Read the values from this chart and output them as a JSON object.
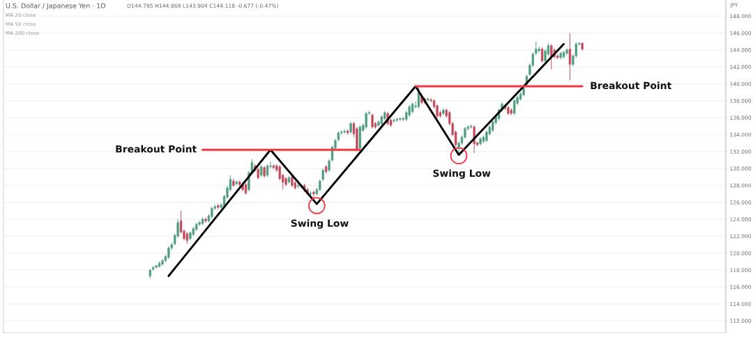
{
  "chart_data": {
    "type": "candlestick",
    "title": "U.S. Dollar / Japanese Yen · 1D",
    "ylabel": "JPY",
    "annotations": [
      "O144.795 H144.869 L143.904 C144.118 -0.677 (-0.47%)",
      "MA 20 close",
      "MA 50 close",
      "MA 200 close"
    ],
    "categories": [
      null,
      null,
      null,
      null,
      null,
      null,
      null,
      null,
      null,
      null,
      null,
      null,
      null,
      null,
      null,
      null,
      null,
      null,
      null,
      null,
      null,
      null,
      null,
      null,
      null,
      null,
      null,
      null,
      null,
      null,
      null,
      null,
      null,
      null,
      null,
      null,
      null,
      null,
      null,
      null,
      null,
      null,
      null,
      null,
      null,
      null,
      null,
      null,
      null,
      null,
      null,
      null,
      null,
      null,
      null,
      null,
      null,
      null,
      null,
      null,
      null,
      null,
      null,
      null,
      null,
      null,
      null,
      null,
      null,
      null,
      null,
      null,
      null,
      null,
      null,
      null,
      null,
      null,
      null,
      null,
      null,
      null,
      null,
      null,
      null,
      null,
      null,
      null,
      null,
      null,
      null,
      null,
      null,
      null,
      null,
      null,
      null,
      null,
      null,
      null,
      null,
      null,
      null,
      null,
      null,
      null,
      null,
      null,
      null,
      null,
      null,
      null,
      null,
      null,
      null,
      null,
      null,
      null,
      null,
      null,
      null,
      null,
      null,
      null,
      null,
      null,
      null,
      null,
      null,
      null,
      null,
      null,
      null,
      null,
      null,
      null,
      null,
      null,
      null,
      null,
      null,
      null,
      null,
      null,
      null,
      null,
      null,
      null,
      null,
      null,
      null,
      null,
      null,
      null,
      null,
      null,
      null,
      null,
      null,
      null,
      null,
      null,
      null,
      null,
      null,
      null,
      null,
      null,
      null,
      null,
      null,
      null,
      null,
      null,
      null,
      null,
      null,
      null,
      null,
      null,
      null,
      null,
      null,
      null,
      null,
      null,
      null,
      null,
      null,
      null,
      null,
      null,
      null,
      null,
      null,
      null,
      null,
      null,
      null,
      null,
      null,
      null,
      null,
      null,
      null,
      null,
      null,
      null,
      null,
      null,
      null,
      null,
      null,
      null,
      null,
      null,
      null,
      null,
      null,
      null,
      null,
      null,
      null,
      null,
      null,
      null,
      null,
      null,
      null,
      null,
      null,
      null,
      null,
      null
    ],
    "ohlc": [
      null,
      null,
      null,
      null,
      null,
      null,
      null,
      null,
      null,
      null,
      null,
      null,
      null,
      null,
      null,
      null,
      null,
      null,
      null,
      null,
      null,
      null,
      null,
      null,
      null,
      null,
      null,
      null,
      null,
      null,
      null,
      null,
      null,
      null,
      null,
      null,
      null,
      null,
      null,
      null,
      null,
      null,
      null,
      null,
      null,
      null,
      null,
      [
        117.3,
        118.1,
        117.0,
        118.0
      ],
      [
        118.1,
        118.5,
        117.9,
        118.3
      ],
      [
        118.3,
        118.6,
        118.2,
        118.5
      ],
      [
        118.4,
        119.0,
        118.3,
        118.8
      ],
      [
        118.7,
        119.3,
        118.5,
        119.1
      ],
      [
        119.1,
        119.8,
        118.9,
        119.6
      ],
      [
        119.5,
        120.8,
        119.3,
        120.6
      ],
      [
        120.6,
        121.2,
        120.4,
        121.0
      ],
      [
        121.1,
        122.3,
        120.9,
        122.1
      ],
      [
        122.0,
        124.0,
        121.8,
        123.6
      ],
      [
        123.8,
        125.0,
        122.3,
        122.5
      ],
      [
        122.6,
        122.8,
        121.5,
        121.7
      ],
      [
        122.3,
        122.5,
        121.1,
        121.5
      ],
      [
        121.7,
        122.5,
        121.5,
        122.4
      ],
      [
        122.2,
        123.1,
        122.0,
        122.9
      ],
      [
        122.8,
        123.6,
        122.6,
        123.4
      ],
      [
        123.4,
        123.8,
        123.2,
        123.6
      ],
      [
        123.5,
        124.2,
        123.3,
        124.0
      ],
      [
        124.0,
        124.2,
        123.6,
        123.8
      ],
      [
        123.8,
        124.6,
        123.6,
        124.4
      ],
      [
        124.3,
        125.5,
        124.1,
        125.3
      ],
      [
        125.3,
        125.7,
        125.1,
        125.5
      ],
      [
        125.6,
        125.8,
        125.2,
        125.4
      ],
      [
        125.4,
        125.9,
        125.2,
        125.7
      ],
      [
        125.5,
        126.9,
        125.3,
        126.7
      ],
      [
        126.6,
        127.9,
        126.4,
        127.7
      ],
      [
        127.5,
        129.2,
        127.3,
        128.7
      ],
      [
        128.5,
        128.8,
        127.8,
        128.0
      ],
      [
        128.2,
        128.6,
        128.0,
        128.4
      ],
      [
        128.4,
        128.6,
        127.9,
        128.1
      ],
      [
        128.2,
        128.4,
        127.3,
        127.5
      ],
      [
        128.1,
        128.3,
        126.9,
        127.1
      ],
      [
        127.5,
        129.7,
        127.3,
        129.5
      ],
      [
        129.5,
        131.1,
        129.3,
        130.7
      ],
      [
        130.3,
        130.5,
        129.6,
        129.8
      ],
      [
        129.9,
        130.1,
        128.7,
        128.9
      ],
      [
        129.2,
        130.4,
        129.0,
        130.2
      ],
      [
        130.1,
        130.3,
        128.9,
        129.1
      ],
      [
        129.2,
        130.5,
        129.0,
        130.3
      ],
      [
        130.2,
        130.8,
        130.0,
        130.3
      ],
      [
        130.3,
        130.5,
        129.9,
        130.1
      ],
      [
        130.3,
        130.5,
        129.6,
        129.8
      ],
      [
        130.2,
        130.4,
        128.6,
        128.8
      ],
      [
        129.2,
        129.4,
        127.5,
        128.4
      ],
      [
        128.8,
        129.0,
        127.9,
        128.1
      ],
      [
        128.4,
        129.1,
        128.2,
        128.9
      ],
      [
        129.0,
        129.2,
        127.8,
        128.0
      ],
      [
        128.3,
        128.5,
        127.5,
        127.7
      ],
      [
        127.9,
        128.2,
        127.7,
        128.0
      ],
      [
        127.8,
        128.2,
        127.6,
        128.0
      ],
      [
        128.0,
        128.2,
        127.2,
        127.4
      ],
      [
        127.5,
        127.7,
        126.8,
        127.0
      ],
      [
        127.0,
        127.3,
        126.6,
        127.1
      ],
      [
        127.2,
        127.4,
        126.5,
        127.0
      ],
      [
        127.0,
        127.7,
        126.8,
        127.5
      ],
      [
        127.5,
        128.7,
        127.3,
        128.5
      ],
      [
        128.7,
        130.0,
        128.5,
        129.8
      ],
      [
        130.2,
        130.4,
        129.4,
        129.6
      ],
      [
        129.8,
        131.1,
        129.6,
        130.9
      ],
      [
        131.0,
        132.7,
        130.8,
        132.5
      ],
      [
        132.4,
        133.5,
        132.2,
        133.3
      ],
      [
        133.4,
        134.4,
        133.2,
        134.2
      ],
      [
        134.2,
        134.5,
        134.0,
        134.3
      ],
      [
        134.3,
        134.6,
        134.1,
        134.4
      ],
      [
        134.4,
        134.6,
        134.0,
        134.2
      ],
      [
        134.3,
        135.5,
        134.1,
        135.3
      ],
      [
        135.3,
        135.5,
        133.7,
        134.1
      ],
      [
        134.7,
        134.9,
        132.0,
        132.2
      ],
      [
        132.4,
        135.1,
        132.2,
        134.9
      ],
      [
        134.5,
        135.3,
        134.3,
        135.1
      ],
      [
        134.9,
        136.7,
        134.7,
        136.5
      ],
      [
        136.5,
        136.8,
        136.3,
        136.6
      ],
      [
        136.3,
        136.5,
        134.7,
        134.9
      ],
      [
        135.3,
        135.5,
        134.7,
        134.9
      ],
      [
        135.1,
        135.7,
        134.9,
        135.5
      ],
      [
        135.3,
        136.3,
        135.1,
        136.1
      ],
      [
        135.9,
        136.8,
        135.7,
        136.6
      ],
      [
        136.5,
        136.7,
        135.1,
        135.3
      ],
      [
        135.7,
        135.9,
        134.9,
        135.1
      ],
      [
        135.6,
        135.9,
        135.4,
        135.7
      ],
      [
        135.7,
        136.0,
        135.5,
        135.8
      ],
      [
        135.8,
        136.0,
        135.6,
        135.9
      ],
      [
        135.8,
        136.1,
        135.6,
        135.9
      ],
      [
        135.8,
        136.8,
        135.6,
        136.6
      ],
      [
        136.3,
        137.5,
        136.1,
        137.3
      ],
      [
        136.7,
        137.8,
        136.5,
        137.6
      ],
      [
        137.3,
        137.9,
        137.1,
        137.4
      ],
      [
        137.3,
        139.6,
        137.1,
        139.0
      ],
      [
        138.5,
        138.8,
        137.6,
        137.8
      ],
      [
        138.2,
        138.4,
        137.6,
        137.8
      ],
      [
        138.1,
        138.4,
        137.9,
        138.2
      ],
      [
        138.1,
        138.3,
        137.8,
        138.0
      ],
      [
        138.0,
        138.2,
        137.1,
        137.3
      ],
      [
        137.4,
        137.6,
        136.0,
        136.2
      ],
      [
        136.6,
        136.8,
        136.0,
        136.2
      ],
      [
        136.5,
        137.1,
        136.3,
        136.9
      ],
      [
        136.9,
        137.1,
        136.0,
        136.2
      ],
      [
        136.6,
        136.8,
        135.1,
        135.3
      ],
      [
        135.3,
        135.5,
        133.8,
        134.0
      ],
      [
        134.3,
        134.5,
        132.6,
        132.8
      ],
      [
        132.4,
        133.2,
        131.6,
        133.0
      ],
      [
        133.0,
        133.9,
        132.8,
        133.7
      ],
      [
        133.7,
        134.9,
        133.5,
        134.7
      ],
      [
        134.7,
        135.1,
        134.5,
        134.9
      ],
      [
        134.9,
        135.2,
        134.7,
        135.0
      ],
      [
        134.9,
        135.1,
        131.8,
        132.9
      ],
      [
        133.0,
        133.2,
        132.6,
        132.8
      ],
      [
        132.9,
        133.7,
        132.7,
        133.5
      ],
      [
        133.2,
        133.9,
        133.0,
        133.7
      ],
      [
        133.3,
        134.5,
        133.1,
        134.3
      ],
      [
        134.1,
        135.1,
        133.9,
        134.9
      ],
      [
        134.5,
        135.7,
        134.3,
        135.5
      ],
      [
        135.4,
        136.3,
        135.2,
        136.1
      ],
      [
        135.9,
        137.1,
        135.7,
        136.9
      ],
      [
        136.9,
        137.8,
        136.7,
        137.6
      ],
      [
        137.4,
        137.6,
        136.9,
        137.1
      ],
      [
        137.2,
        137.4,
        136.3,
        136.5
      ],
      [
        136.9,
        137.1,
        136.3,
        136.5
      ],
      [
        136.5,
        138.2,
        136.3,
        138.0
      ],
      [
        137.7,
        138.6,
        137.5,
        138.4
      ],
      [
        138.2,
        139.0,
        138.0,
        138.8
      ],
      [
        138.7,
        139.7,
        138.5,
        139.5
      ],
      [
        139.9,
        141.1,
        139.7,
        140.9
      ],
      [
        141.1,
        142.4,
        140.9,
        142.2
      ],
      [
        142.2,
        143.7,
        142.0,
        143.5
      ],
      [
        143.6,
        145.0,
        143.4,
        144.1
      ],
      [
        143.9,
        144.4,
        143.7,
        144.1
      ],
      [
        144.1,
        144.3,
        142.5,
        142.7
      ],
      [
        142.7,
        144.1,
        142.5,
        143.9
      ],
      [
        143.5,
        144.8,
        143.3,
        144.5
      ],
      [
        144.5,
        144.7,
        141.7,
        143.1
      ],
      [
        144.0,
        144.2,
        143.0,
        143.2
      ],
      [
        143.3,
        143.5,
        142.9,
        143.1
      ],
      [
        143.1,
        143.8,
        142.9,
        143.6
      ],
      [
        143.2,
        143.9,
        143.0,
        143.7
      ],
      [
        143.6,
        144.2,
        143.4,
        144.0
      ],
      [
        144.1,
        146.0,
        140.4,
        142.3
      ],
      [
        142.3,
        143.5,
        142.1,
        143.3
      ],
      [
        143.3,
        144.9,
        143.1,
        144.7
      ],
      [
        144.7,
        144.9,
        144.5,
        144.8
      ],
      [
        144.795,
        144.869,
        143.904,
        144.118
      ],
      null,
      null,
      null,
      null,
      null,
      null,
      null,
      null,
      null,
      null,
      null,
      null,
      null,
      null,
      null,
      null,
      null,
      null,
      null,
      null,
      null,
      null,
      null,
      null,
      null,
      null,
      null,
      null,
      null,
      null,
      null,
      null,
      null,
      null,
      null,
      null,
      null,
      null,
      null,
      null,
      null,
      null,
      null,
      null,
      null,
      null
    ],
    "colors": [
      null,
      null,
      null,
      null,
      null,
      null,
      null,
      null,
      null,
      null,
      null,
      null,
      null,
      null,
      null,
      null,
      null,
      null,
      null,
      null,
      null,
      null,
      null,
      null,
      null,
      null,
      null,
      null,
      null,
      null,
      null,
      null,
      null,
      null,
      null,
      null,
      null,
      null,
      null,
      null,
      null,
      null,
      null,
      null,
      null,
      null,
      null,
      "#4f9d7e",
      "#4f9d7e",
      "#4f9d7e",
      "#4f9d7e",
      "#4f9d7e",
      "#4f9d7e",
      "#4f9d7e",
      "#4f9d7e",
      "#4f9d7e",
      "#4f9d7e",
      "#c04b5c",
      "#c04b5c",
      "#c04b5c",
      "#4f9d7e",
      "#4f9d7e",
      "#4f9d7e",
      "#4f9d7e",
      "#4f9d7e",
      "#c04b5c",
      "#4f9d7e",
      "#4f9d7e",
      "#4f9d7e",
      "#c04b5c",
      "#4f9d7e",
      "#4f9d7e",
      "#4f9d7e",
      "#4f9d7e",
      "#c04b5c",
      "#4f9d7e",
      "#c04b5c",
      "#c04b5c",
      "#c04b5c",
      "#4f9d7e",
      "#4f9d7e",
      "#c04b5c",
      "#c04b5c",
      "#4f9d7e",
      "#c04b5c",
      "#4f9d7e",
      "#4f9d7e",
      "#c04b5c",
      "#c04b5c",
      "#c04b5c",
      "#c04b5c",
      "#c04b5c",
      "#4f9d7e",
      "#c04b5c",
      "#c04b5c",
      "#4f9d7e",
      "#4f9d7e",
      "#c04b5c",
      "#c04b5c",
      "#4f9d7e",
      "#c04b5c",
      "#4f9d7e",
      "#4f9d7e",
      "#4f9d7e",
      "#c04b5c",
      "#4f9d7e",
      "#4f9d7e",
      "#4f9d7e",
      "#4f9d7e",
      "#4f9d7e",
      "#4f9d7e",
      "#c04b5c",
      "#4f9d7e",
      "#c04b5c",
      "#c04b5c",
      "#4f9d7e",
      "#4f9d7e",
      "#4f9d7e",
      "#4f9d7e",
      "#c04b5c",
      "#c04b5c",
      "#4f9d7e",
      "#4f9d7e",
      "#4f9d7e",
      "#c04b5c",
      "#c04b5c",
      "#4f9d7e",
      "#4f9d7e",
      "#4f9d7e",
      "#4f9d7e",
      "#4f9d7e",
      "#4f9d7e",
      "#4f9d7e",
      "#4f9d7e",
      "#4f9d7e",
      "#c04b5c",
      "#c04b5c",
      "#4f9d7e",
      "#c04b5c",
      "#c04b5c",
      "#c04b5c",
      "#c04b5c",
      "#4f9d7e",
      "#c04b5c",
      "#c04b5c",
      "#c04b5c",
      "#c04b5c",
      "#4f9d7e",
      "#4f9d7e",
      "#4f9d7e",
      "#4f9d7e",
      "#4f9d7e",
      "#c04b5c",
      "#c04b5c",
      "#4f9d7e",
      "#4f9d7e",
      "#4f9d7e",
      "#4f9d7e",
      "#4f9d7e",
      "#4f9d7e",
      "#4f9d7e",
      "#4f9d7e",
      "#c04b5c",
      "#c04b5c",
      "#c04b5c",
      "#4f9d7e",
      "#4f9d7e",
      "#4f9d7e",
      "#4f9d7e",
      "#4f9d7e",
      "#4f9d7e",
      "#4f9d7e",
      "#4f9d7e",
      "#4f9d7e",
      "#c04b5c",
      "#4f9d7e",
      "#4f9d7e",
      "#c04b5c",
      "#c04b5c",
      "#c04b5c",
      "#4f9d7e",
      "#4f9d7e",
      "#4f9d7e",
      "#c04b5c",
      "#4f9d7e",
      "#4f9d7e",
      "#4f9d7e",
      "#c04b5c",
      null,
      null,
      null,
      null,
      null,
      null,
      null,
      null,
      null,
      null,
      null,
      null,
      null,
      null,
      null,
      null,
      null,
      null,
      null,
      null,
      null,
      null,
      null,
      null,
      null,
      null,
      null,
      null,
      null,
      null,
      null,
      null,
      null,
      null,
      null,
      null,
      null,
      null,
      null,
      null,
      null,
      null,
      null,
      null,
      null,
      null
    ],
    "series": [
      {
        "type": "line",
        "color": "#000000",
        "values": [
          null,
          null,
          null,
          null,
          null,
          null,
          null,
          null,
          null,
          null,
          null,
          null,
          null,
          null,
          null,
          null,
          null,
          null,
          null,
          null,
          null,
          null,
          null,
          null,
          null,
          null,
          null,
          null,
          null,
          null,
          null,
          null,
          null,
          null,
          null,
          null,
          null,
          null,
          null,
          null,
          null,
          null,
          null,
          null,
          null,
          null,
          null,
          null,
          null,
          null,
          null,
          null,
          null,
          117.3,
          null,
          null,
          null,
          null,
          null,
          null,
          null,
          null,
          null,
          null,
          null,
          null,
          null,
          null,
          null,
          null,
          null,
          null,
          null,
          null,
          null,
          null,
          null,
          null,
          null,
          null,
          null,
          null,
          null,
          null,
          null,
          null,
          132.2,
          null,
          null,
          null,
          null,
          null,
          null,
          null,
          null,
          null,
          null,
          null,
          null,
          null,
          null,
          125.8,
          null,
          null,
          null,
          null,
          null,
          null,
          null,
          null,
          null,
          null,
          null,
          null,
          null,
          null,
          null,
          null,
          null,
          null,
          null,
          null,
          null,
          null,
          null,
          null,
          null,
          null,
          null,
          null,
          null,
          null,
          null,
          139.7,
          null,
          null,
          null,
          null,
          null,
          null,
          null,
          null,
          null,
          null,
          null,
          null,
          null,
          131.6,
          null,
          null,
          null,
          null,
          null,
          null,
          null,
          null,
          null,
          null,
          null,
          null,
          null,
          null,
          null,
          null,
          null,
          null,
          null,
          null,
          null,
          null,
          null,
          null,
          null,
          null,
          null,
          null,
          null,
          null,
          null,
          null,
          null,
          144.7,
          null,
          null,
          null,
          null,
          null,
          null,
          null,
          null,
          null,
          null,
          null,
          null,
          null,
          null,
          null,
          null,
          null,
          null,
          null,
          null,
          null,
          null,
          null,
          null,
          null,
          null,
          null,
          null,
          null,
          null,
          null,
          null,
          null,
          null,
          null,
          null,
          null,
          null,
          null,
          null,
          null,
          null,
          null,
          null,
          null,
          null,
          null,
          null,
          null,
          null,
          null,
          null
        ]
      },
      {
        "type": "line",
        "name": "Breakout Point",
        "color": "#f23645",
        "values": [
          null,
          null,
          null,
          null,
          null,
          null,
          null,
          null,
          null,
          null,
          null,
          null,
          null,
          null,
          null,
          null,
          null,
          null,
          null,
          null,
          null,
          null,
          null,
          null,
          null,
          null,
          null,
          null,
          null,
          null,
          null,
          null,
          null,
          null,
          null,
          null,
          null,
          null,
          null,
          null,
          null,
          null,
          null,
          null,
          null,
          null,
          null,
          null,
          null,
          null,
          null,
          null,
          null,
          null,
          null,
          null,
          null,
          null,
          null,
          null,
          null,
          null,
          null,
          null,
          132.2,
          132.2,
          132.2,
          132.2,
          132.2,
          132.2,
          132.2,
          132.2,
          132.2,
          132.2,
          132.2,
          132.2,
          132.2,
          132.2,
          132.2,
          132.2,
          132.2,
          132.2,
          132.2,
          132.2,
          132.2,
          132.2,
          132.2,
          132.2,
          132.2,
          132.2,
          132.2,
          132.2,
          132.2,
          132.2,
          132.2,
          132.2,
          132.2,
          132.2,
          132.2,
          132.2,
          132.2,
          132.2,
          132.2,
          132.2,
          132.2,
          132.2,
          132.2,
          132.2,
          132.2,
          132.2,
          132.2,
          132.2,
          132.2,
          132.2,
          132.2,
          132.2,
          null,
          null,
          null,
          null,
          null,
          null,
          null,
          null,
          null,
          null,
          null,
          null,
          null,
          null,
          null,
          null,
          null,
          null,
          null,
          null,
          null,
          null,
          null,
          null,
          null,
          null,
          null,
          null,
          null,
          null,
          null,
          null,
          null,
          null,
          null,
          null,
          null,
          null,
          null,
          null,
          null,
          null,
          null,
          null,
          null,
          null,
          null,
          null,
          null,
          null,
          null,
          null,
          null,
          null,
          null,
          null,
          null,
          null,
          null,
          null,
          null,
          null,
          null,
          null,
          null,
          null,
          null,
          null,
          null,
          null,
          null,
          null,
          null,
          null,
          null,
          null,
          null,
          null,
          null,
          null,
          null,
          null,
          null,
          null,
          null,
          null,
          null,
          null,
          null,
          null,
          null,
          null,
          null,
          null,
          null,
          null,
          null,
          null,
          null,
          null,
          null,
          null,
          null,
          null,
          null,
          null,
          null,
          null,
          null,
          null,
          null,
          null,
          null,
          null,
          null,
          null,
          null,
          null
        ]
      },
      {
        "type": "line",
        "name": "Breakout Point",
        "color": "#f23645",
        "values": [
          null,
          null,
          null,
          null,
          null,
          null,
          null,
          null,
          null,
          null,
          null,
          null,
          null,
          null,
          null,
          null,
          null,
          null,
          null,
          null,
          null,
          null,
          null,
          null,
          null,
          null,
          null,
          null,
          null,
          null,
          null,
          null,
          null,
          null,
          null,
          null,
          null,
          null,
          null,
          null,
          null,
          null,
          null,
          null,
          null,
          null,
          null,
          null,
          null,
          null,
          null,
          null,
          null,
          null,
          null,
          null,
          null,
          null,
          null,
          null,
          null,
          null,
          null,
          null,
          null,
          null,
          null,
          null,
          null,
          null,
          null,
          null,
          null,
          null,
          null,
          null,
          null,
          null,
          null,
          null,
          null,
          null,
          null,
          null,
          null,
          null,
          null,
          null,
          null,
          null,
          null,
          null,
          null,
          null,
          null,
          null,
          null,
          null,
          null,
          null,
          null,
          null,
          null,
          null,
          null,
          null,
          null,
          null,
          null,
          null,
          null,
          null,
          null,
          null,
          null,
          null,
          null,
          null,
          null,
          null,
          null,
          null,
          null,
          null,
          null,
          null,
          null,
          null,
          null,
          null,
          null,
          null,
          null,
          139.7,
          139.7,
          139.7,
          139.7,
          139.7,
          139.7,
          139.7,
          139.7,
          139.7,
          139.7,
          139.7,
          139.7,
          139.7,
          139.7,
          139.7,
          139.7,
          139.7,
          139.7,
          139.7,
          139.7,
          139.7,
          139.7,
          139.7,
          139.7,
          139.7,
          139.7,
          139.7,
          139.7,
          139.7,
          139.7,
          139.7,
          139.7,
          139.7,
          139.7,
          139.7,
          139.7,
          139.7,
          139.7,
          139.7,
          139.7,
          139.7,
          139.7,
          139.7,
          139.7,
          139.7,
          139.7,
          139.7,
          139.7,
          139.7,
          139.7,
          139.7,
          139.7,
          139.7,
          139.7,
          139.7,
          null,
          null,
          null,
          null,
          null,
          null,
          null,
          null,
          null,
          null,
          null,
          null,
          null,
          null,
          null,
          null,
          null,
          null,
          null,
          null,
          null,
          null,
          null,
          null,
          null,
          null,
          null,
          null,
          null,
          null,
          null,
          null,
          null,
          null,
          null,
          null,
          null,
          null,
          null,
          null,
          null,
          null,
          null,
          null,
          null,
          null
        ]
      },
      {
        "type": "scatter",
        "name": "Swing Low",
        "color": "#f23645",
        "marker": "circle",
        "values": [
          null,
          null,
          null,
          null,
          null,
          null,
          null,
          null,
          null,
          null,
          null,
          null,
          null,
          null,
          null,
          null,
          null,
          null,
          null,
          null,
          null,
          null,
          null,
          null,
          null,
          null,
          null,
          null,
          null,
          null,
          null,
          null,
          null,
          null,
          null,
          null,
          null,
          null,
          null,
          null,
          null,
          null,
          null,
          null,
          null,
          null,
          null,
          null,
          null,
          null,
          null,
          null,
          null,
          null,
          null,
          null,
          null,
          null,
          null,
          null,
          null,
          null,
          null,
          null,
          null,
          null,
          null,
          null,
          null,
          null,
          null,
          null,
          null,
          null,
          null,
          null,
          null,
          null,
          null,
          null,
          null,
          null,
          null,
          null,
          null,
          null,
          null,
          null,
          null,
          null,
          null,
          null,
          null,
          null,
          null,
          null,
          null,
          null,
          null,
          null,
          null,
          125.6,
          null,
          null,
          null,
          null,
          null,
          null,
          null,
          null,
          null,
          null,
          null,
          null,
          null,
          null,
          null,
          null,
          null,
          null,
          null,
          null,
          null,
          null,
          null,
          null,
          null,
          null,
          null,
          null,
          null,
          null,
          null,
          null,
          null,
          null,
          null,
          null,
          null,
          null,
          null,
          null,
          null,
          null,
          null,
          null,
          null,
          null,
          null,
          null,
          null,
          null,
          null,
          null,
          null,
          null,
          null,
          null,
          null,
          null,
          null,
          null,
          null,
          null,
          null,
          null,
          null,
          null,
          null,
          null,
          null,
          null,
          null,
          null,
          null,
          null,
          null,
          null,
          null,
          null,
          null,
          null,
          null,
          null,
          null,
          null,
          null,
          null,
          null,
          null,
          null,
          null,
          null,
          null,
          null,
          null,
          null,
          null,
          null,
          null,
          null,
          null,
          null,
          null,
          null,
          null,
          null,
          null,
          null,
          null,
          null,
          null,
          null,
          null,
          null,
          null,
          null,
          null,
          null,
          null,
          null,
          null,
          null,
          null,
          null,
          null,
          null,
          null,
          null,
          null,
          null,
          null,
          null,
          null
        ]
      },
      {
        "type": "scatter",
        "name": "Swing Low",
        "color": "#f23645",
        "marker": "circle",
        "values": [
          null,
          null,
          null,
          null,
          null,
          null,
          null,
          null,
          null,
          null,
          null,
          null,
          null,
          null,
          null,
          null,
          null,
          null,
          null,
          null,
          null,
          null,
          null,
          null,
          null,
          null,
          null,
          null,
          null,
          null,
          null,
          null,
          null,
          null,
          null,
          null,
          null,
          null,
          null,
          null,
          null,
          null,
          null,
          null,
          null,
          null,
          null,
          null,
          null,
          null,
          null,
          null,
          null,
          null,
          null,
          null,
          null,
          null,
          null,
          null,
          null,
          null,
          null,
          null,
          null,
          null,
          null,
          null,
          null,
          null,
          null,
          null,
          null,
          null,
          null,
          null,
          null,
          null,
          null,
          null,
          null,
          null,
          null,
          null,
          null,
          null,
          null,
          null,
          null,
          null,
          null,
          null,
          null,
          null,
          null,
          null,
          null,
          null,
          null,
          null,
          null,
          null,
          null,
          null,
          null,
          null,
          null,
          null,
          null,
          null,
          null,
          null,
          null,
          null,
          null,
          null,
          null,
          null,
          null,
          null,
          null,
          null,
          null,
          null,
          null,
          null,
          null,
          null,
          null,
          null,
          null,
          null,
          null,
          null,
          null,
          null,
          null,
          null,
          null,
          null,
          null,
          null,
          null,
          null,
          null,
          null,
          null,
          131.5,
          null,
          null,
          null,
          null,
          null,
          null,
          null,
          null,
          null,
          null,
          null,
          null,
          null,
          null,
          null,
          null,
          null,
          null,
          null,
          null,
          null,
          null,
          null,
          null,
          null,
          null,
          null,
          null,
          null,
          null,
          null,
          null,
          null,
          null,
          null,
          null,
          null,
          null,
          null,
          null,
          null,
          null,
          null,
          null,
          null,
          null,
          null,
          null,
          null,
          null,
          null,
          null,
          null,
          null,
          null,
          null,
          null,
          null,
          null,
          null,
          null,
          null,
          null,
          null,
          null,
          null,
          null,
          null,
          null,
          null,
          null,
          null,
          null,
          null,
          null,
          null,
          null,
          null,
          null,
          null,
          null,
          null,
          null,
          null,
          null,
          null
        ]
      }
    ],
    "ylim": [
      110.6,
      149.9
    ],
    "yticks": [
      {
        "value": 112,
        "label": "112.000"
      },
      {
        "value": 114,
        "label": "114.000"
      },
      {
        "value": 116,
        "label": "116.000"
      },
      {
        "value": 118,
        "label": "118.000"
      },
      {
        "value": 120,
        "label": "120.000"
      },
      {
        "value": 122,
        "label": "122.000"
      },
      {
        "value": 124,
        "label": "124.000"
      },
      {
        "value": 126,
        "label": "126.000"
      },
      {
        "value": 128,
        "label": "128.000"
      },
      {
        "value": 130,
        "label": "130.000"
      },
      {
        "value": 132,
        "label": "132.000"
      },
      {
        "value": 134,
        "label": "134.000"
      },
      {
        "value": 136,
        "label": "136.000"
      },
      {
        "value": 138,
        "label": "138.000"
      },
      {
        "value": 140,
        "label": "140.000"
      },
      {
        "value": 142,
        "label": "142.000"
      },
      {
        "value": 144,
        "label": "144.000"
      },
      {
        "value": 146,
        "label": "146.000"
      },
      {
        "value": 148,
        "label": "148.000"
      }
    ],
    "grid": "y",
    "tick_labels": "y"
  }
}
